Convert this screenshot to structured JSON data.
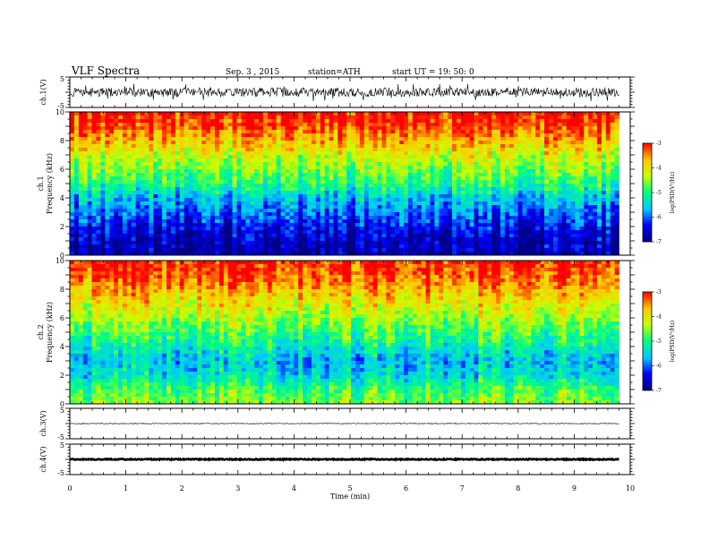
{
  "header": {
    "title": "VLF Spectra",
    "date": "Sep. 3  , 2015",
    "station": "station=ATH",
    "start": "start  UT =   19: 50: 0"
  },
  "chart_data": [
    {
      "type": "line",
      "panel": "ch1-waveform",
      "ylabel": "ch.1(V)",
      "ylim": [
        -5,
        5
      ],
      "ytick_labels": [
        "5",
        "-5"
      ],
      "xlim": [
        0,
        10
      ],
      "data_extent_x": [
        0,
        9.8
      ],
      "description_values": {
        "baseline_v": 0.0,
        "typical_range_v": [
          -1.5,
          1.5
        ],
        "peak_range_v": [
          -3,
          3
        ]
      }
    },
    {
      "type": "heatmap",
      "panel": "ch1-spectrogram",
      "ylabel": "ch.1\nFrequency  (kHz)",
      "ylabel_line1": "ch.1",
      "ylabel_line2": "Frequency  (kHz)",
      "ylim": [
        0,
        10
      ],
      "ytick_labels": [
        "0",
        "2",
        "4",
        "6",
        "8",
        "10"
      ],
      "xlim": [
        0,
        10
      ],
      "data_extent_x": [
        0,
        9.8
      ],
      "colorbar": {
        "label": "log(PSD(V²/Hz)",
        "range": [
          -7,
          -3
        ],
        "tick_labels": [
          "-3",
          "-4",
          "-5",
          "-6",
          "-7"
        ]
      },
      "level_by_frequency_khz": [
        {
          "f": 0.0,
          "logpsd": -6.8
        },
        {
          "f": 1.0,
          "logpsd": -6.7
        },
        {
          "f": 2.0,
          "logpsd": -6.4
        },
        {
          "f": 3.0,
          "logpsd": -6.0
        },
        {
          "f": 4.0,
          "logpsd": -5.6
        },
        {
          "f": 5.0,
          "logpsd": -5.0
        },
        {
          "f": 6.0,
          "logpsd": -4.6
        },
        {
          "f": 7.0,
          "logpsd": -4.2
        },
        {
          "f": 8.0,
          "logpsd": -3.7
        },
        {
          "f": 9.0,
          "logpsd": -3.2
        },
        {
          "f": 10.0,
          "logpsd": -3.0
        }
      ]
    },
    {
      "type": "heatmap",
      "panel": "ch2-spectrogram",
      "ylabel": "ch.2\nFrequency  (kHz)",
      "ylabel_line1": "ch.2",
      "ylabel_line2": "Frequency  (kHz)",
      "ylim": [
        0,
        10
      ],
      "ytick_labels": [
        "0",
        "2",
        "4",
        "6",
        "8",
        "10"
      ],
      "xlim": [
        0,
        10
      ],
      "data_extent_x": [
        0,
        9.8
      ],
      "colorbar": {
        "label": "log(PSD(V²/Hz)",
        "range": [
          -7,
          -3
        ],
        "tick_labels": [
          "-3",
          "-4",
          "-5",
          "-6",
          "-7"
        ]
      },
      "level_by_frequency_khz": [
        {
          "f": 0.0,
          "logpsd": -4.5
        },
        {
          "f": 1.0,
          "logpsd": -4.8
        },
        {
          "f": 2.0,
          "logpsd": -5.4
        },
        {
          "f": 3.0,
          "logpsd": -5.6
        },
        {
          "f": 4.0,
          "logpsd": -5.2
        },
        {
          "f": 5.0,
          "logpsd": -4.8
        },
        {
          "f": 6.0,
          "logpsd": -4.4
        },
        {
          "f": 7.0,
          "logpsd": -4.0
        },
        {
          "f": 8.0,
          "logpsd": -3.6
        },
        {
          "f": 9.0,
          "logpsd": -3.2
        },
        {
          "f": 10.0,
          "logpsd": -3.0
        }
      ]
    },
    {
      "type": "line",
      "panel": "ch3-waveform",
      "ylabel": "ch.3(V)",
      "ylim": [
        -5,
        5
      ],
      "ytick_labels": [
        "5",
        "-5"
      ],
      "xlim": [
        0,
        10
      ],
      "data_extent_x": [
        0,
        9.8
      ],
      "description_values": {
        "baseline_v": 0.0,
        "typical_range_v": [
          -0.3,
          0.3
        ]
      }
    },
    {
      "type": "line",
      "panel": "ch4-waveform",
      "ylabel": "ch.4(V)",
      "ylim": [
        -5,
        5
      ],
      "ytick_labels": [
        "5",
        "-5"
      ],
      "xlim": [
        0,
        10
      ],
      "data_extent_x": [
        0,
        9.8
      ],
      "description_values": {
        "baseline_v": 0.0,
        "typical_range_v": [
          -0.4,
          0.4
        ]
      }
    }
  ],
  "xaxis": {
    "label": "Time  (min)",
    "tick_labels": [
      "0",
      "1",
      "2",
      "3",
      "4",
      "5",
      "6",
      "7",
      "8",
      "9",
      "10"
    ],
    "range": [
      0,
      10
    ]
  },
  "colors": {
    "colormap": [
      "#000080",
      "#0000ff",
      "#00c8ff",
      "#00ff80",
      "#c8ff00",
      "#ffc800",
      "#ff0000"
    ],
    "axis": "#000000",
    "waveform": "#000000"
  }
}
